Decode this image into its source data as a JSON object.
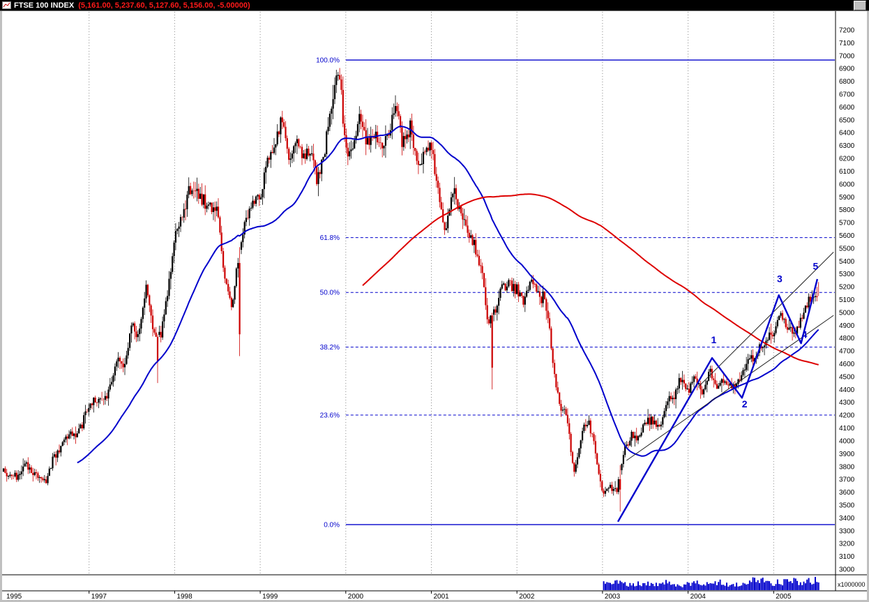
{
  "window": {
    "title": "FTSE 100 INDEX",
    "ohlc_readout": "(5,161.00, 5,237.60, 5,127.60, 5,156.00, -5.00000)"
  },
  "chart_data": {
    "type": "candlestick",
    "title": "FTSE 100 INDEX weekly chart with two long-term moving averages, Fibonacci retracement and Elliott wave count 1-5",
    "x_start_year": 1996,
    "x_end_year": 2005.55,
    "x_tick_labels": [
      "1995",
      "1997",
      "1998",
      "1999",
      "2000",
      "2001",
      "2002",
      "2003",
      "2004",
      "2005"
    ],
    "y_axis": {
      "min": 3000,
      "max": 7200,
      "step": 100
    },
    "last_bar": {
      "open": 5161.0,
      "high": 5237.6,
      "low": 5127.6,
      "close": 5156.0,
      "change": -5.0
    },
    "monthly_closes": {
      "start_month": "1996-01",
      "values": [
        3759,
        3727,
        3700,
        3818,
        3748,
        3711,
        3703,
        3868,
        3954,
        4061,
        4058,
        4119,
        4276,
        4308,
        4313,
        4437,
        4622,
        4605,
        4908,
        4818,
        5226,
        4842,
        4832,
        5136,
        5600,
        5767,
        5932,
        5928,
        5871,
        5833,
        5837,
        5249,
        5064,
        5438,
        5744,
        5883,
        5896,
        6176,
        6296,
        6552,
        6196,
        6319,
        6232,
        6246,
        6030,
        6256,
        6597,
        6930,
        6269,
        6233,
        6540,
        6328,
        6360,
        6313,
        6365,
        6673,
        6294,
        6438,
        6142,
        6223,
        6298,
        5918,
        5634,
        5967,
        5796,
        5643,
        5529,
        5345,
        4903,
        5039,
        5203,
        5217,
        5165,
        5101,
        5272,
        5165,
        5086,
        4656,
        4246,
        4227,
        3722,
        4040,
        4169,
        3940,
        3567,
        3655,
        3613,
        3926,
        4048,
        4031,
        4157,
        4161,
        4091,
        4287,
        4343,
        4477,
        4390,
        4492,
        4386,
        4540,
        4430,
        4464,
        4413,
        4459,
        4571,
        4624,
        4703,
        4814,
        4852,
        4969,
        4894,
        4801,
        4964,
        5113,
        5156
      ]
    },
    "intraweek_spike_lows": [
      {
        "year": 1997.8,
        "low": 4450
      },
      {
        "year": 1998.76,
        "low": 4660
      },
      {
        "year": 2001.72,
        "low": 4400
      },
      {
        "year": 2003.21,
        "low": 3450
      }
    ],
    "moving_averages": [
      {
        "name": "fast-long-term-ma",
        "period_weeks": 46,
        "color": "#0000cc"
      },
      {
        "name": "slow-long-term-ma",
        "period_weeks": 220,
        "color": "#dd0000"
      }
    ],
    "fibonacci_retracement": {
      "color": "#0000cc",
      "start_year": 2000.0,
      "levels": [
        {
          "label": "100.0%",
          "price": 6966,
          "style": "solid"
        },
        {
          "label": "61.8%",
          "price": 5583,
          "style": "dashed"
        },
        {
          "label": "50.0%",
          "price": 5156,
          "style": "dashed"
        },
        {
          "label": "38.2%",
          "price": 4730,
          "style": "dashed"
        },
        {
          "label": "23.6%",
          "price": 4201,
          "style": "dashed"
        },
        {
          "label": "0.0%",
          "price": 3347,
          "style": "solid"
        }
      ]
    },
    "elliott_wave": {
      "color": "#0000cc",
      "path": [
        [
          2003.18,
          3370
        ],
        [
          2004.28,
          4645
        ],
        [
          2004.63,
          4335
        ],
        [
          2005.06,
          5135
        ],
        [
          2005.32,
          4760
        ],
        [
          2005.51,
          5260
        ]
      ],
      "labels": [
        {
          "label": "1",
          "year": 2004.3,
          "price": 4760
        },
        {
          "label": "2",
          "year": 2004.66,
          "price": 4260
        },
        {
          "label": "3",
          "year": 2005.07,
          "price": 5235
        },
        {
          "label": "4",
          "year": 2005.36,
          "price": 4800
        },
        {
          "label": "5",
          "year": 2005.49,
          "price": 5335
        }
      ]
    },
    "trendlines": [
      {
        "from": [
          2003.28,
          3847
        ],
        "to": [
          2005.7,
          4977
        ]
      },
      {
        "from": [
          2004.13,
          4428
        ],
        "to": [
          2005.7,
          5470
        ]
      }
    ],
    "volume": {
      "scale_label": "x1000000",
      "color": "#0000cc",
      "monthly_relative": {
        "start_month": "2003-01",
        "values": [
          0.5,
          0.45,
          0.7,
          0.5,
          0.4,
          0.45,
          0.5,
          0.35,
          0.5,
          0.55,
          0.4,
          0.35,
          0.45,
          0.5,
          0.55,
          0.5,
          0.6,
          0.5,
          0.45,
          0.4,
          0.5,
          0.7,
          0.95,
          0.6,
          0.55,
          0.6,
          0.7,
          0.65,
          0.6,
          0.7,
          0.8
        ]
      }
    },
    "colors": {
      "up": "#000000",
      "down": "#cc0000",
      "background": "#ffffff",
      "grid": "#8a8a8a"
    }
  }
}
